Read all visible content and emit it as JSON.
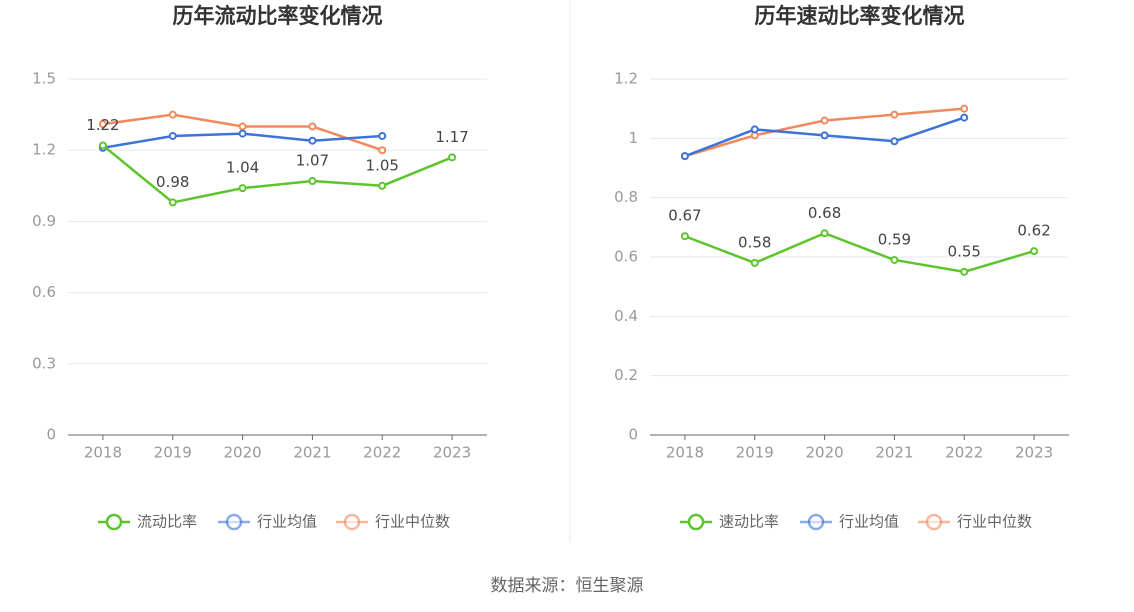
{
  "chart_data": [
    {
      "type": "line",
      "title": "历年流动比率变化情况",
      "categories": [
        "2018",
        "2019",
        "2020",
        "2021",
        "2022",
        "2023"
      ],
      "series": [
        {
          "name": "流动比率",
          "color": "#5cc42c",
          "values": [
            1.22,
            0.98,
            1.04,
            1.07,
            1.05,
            1.17
          ]
        },
        {
          "name": "行业均值",
          "color": "#3d73d9",
          "values": [
            1.21,
            1.26,
            1.27,
            1.24,
            1.26,
            null
          ]
        },
        {
          "name": "行业中位数",
          "color": "#f0895d",
          "values": [
            1.31,
            1.35,
            1.3,
            1.3,
            1.2,
            null
          ]
        }
      ],
      "ylim": [
        0,
        1.5
      ],
      "yticks": [
        0,
        0.3,
        0.6,
        0.9,
        1.2,
        1.5
      ],
      "grid": true
    },
    {
      "type": "line",
      "title": "历年速动比率变化情况",
      "categories": [
        "2018",
        "2019",
        "2020",
        "2021",
        "2022",
        "2023"
      ],
      "series": [
        {
          "name": "速动比率",
          "color": "#5cc42c",
          "values": [
            0.67,
            0.58,
            0.68,
            0.59,
            0.55,
            0.62
          ]
        },
        {
          "name": "行业均值",
          "color": "#3d73d9",
          "values": [
            0.94,
            1.03,
            1.01,
            0.99,
            1.07,
            null
          ]
        },
        {
          "name": "行业中位数",
          "color": "#f0895d",
          "values": [
            0.94,
            1.01,
            1.06,
            1.08,
            1.1,
            null
          ]
        }
      ],
      "ylim": [
        0,
        1.2
      ],
      "yticks": [
        0,
        0.2,
        0.4,
        0.6,
        0.8,
        1,
        1.2
      ],
      "grid": true
    }
  ],
  "source": "数据来源：恒生聚源"
}
